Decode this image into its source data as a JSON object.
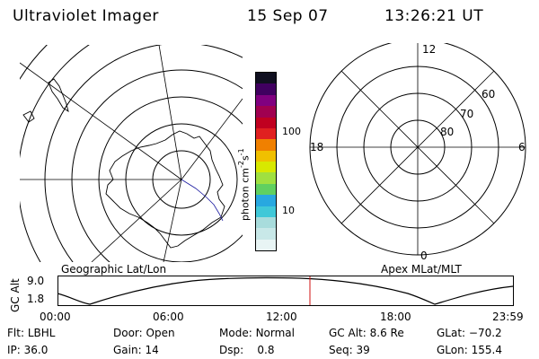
{
  "header": {
    "instrument": "Ultraviolet Imager",
    "date": "15 Sep 07",
    "time": "13:26:21 UT"
  },
  "colorbar": {
    "unit_label": "photon cm",
    "unit_exp1": "-2",
    "unit_mid": "s",
    "unit_exp2": "-1",
    "tick_100": "100",
    "tick_10": "10",
    "colors": [
      "#e8f4f4",
      "#c8e8e8",
      "#a8dcdc",
      "#40c8d8",
      "#28a8e0",
      "#60d060",
      "#a0e040",
      "#d8e800",
      "#f0c000",
      "#f08000",
      "#e02020",
      "#c00020",
      "#a00050",
      "#800080",
      "#400060",
      "#101020"
    ]
  },
  "geo_map": {
    "label": "Geographic Lat/Lon"
  },
  "apex_map": {
    "label": "Apex MLat/MLT",
    "mlt_top": "12",
    "mlt_left": "18",
    "mlt_right": "6",
    "mlt_bottom": "0",
    "lat_60": "60",
    "lat_70": "70",
    "lat_80": "80"
  },
  "orbit": {
    "axis_label": "GC Alt",
    "y_top": "9.0",
    "y_bottom": "1.8",
    "x_ticks": [
      "00:00",
      "06:00",
      "12:00",
      "18:00",
      "23:59"
    ]
  },
  "status": {
    "flt_label": "Flt:",
    "flt_value": "LBHL",
    "ip_label": "IP:",
    "ip_value": "36.0",
    "door_label": "Door:",
    "door_value": "Open",
    "gain_label": "Gain:",
    "gain_value": "14",
    "mode_label": "Mode:",
    "mode_value": "Normal",
    "dsp_label": "Dsp:",
    "dsp_value": "0.8",
    "gcalt_label": "GC Alt:",
    "gcalt_value": "8.6 Re",
    "seq_label": "Seq:",
    "seq_value": "39",
    "glat_label": "GLat:",
    "glat_value": "−70.2",
    "glon_label": "GLon:",
    "glon_value": "155.4"
  }
}
